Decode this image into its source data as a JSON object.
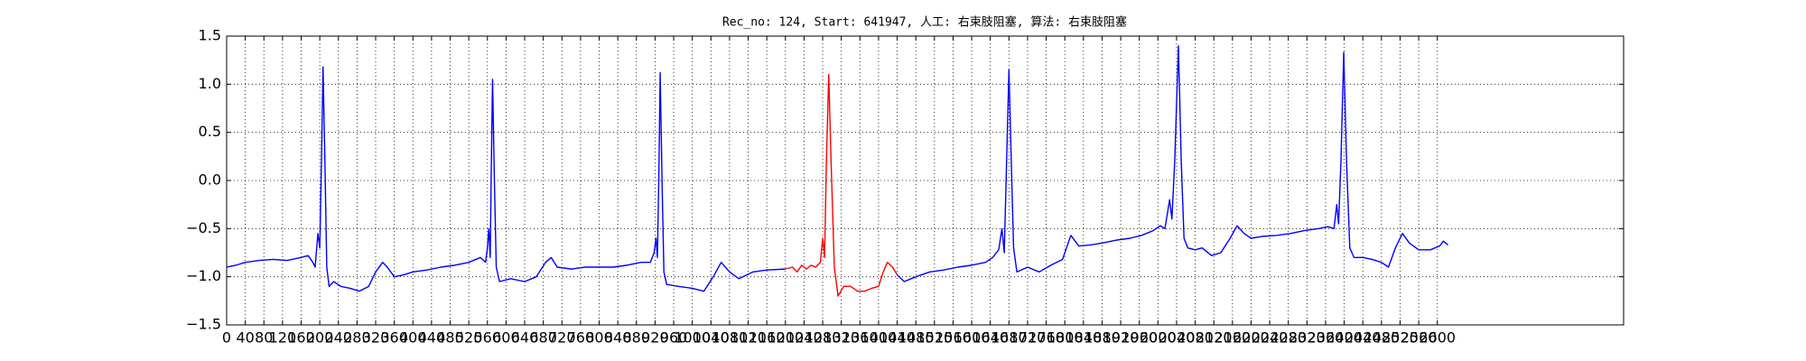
{
  "chart_data": {
    "type": "line",
    "title": "Rec_no: 124, Start: 641947, 人工: 右束肢阻塞, 算法: 右束肢阻塞",
    "xlim": [
      0,
      3000
    ],
    "ylim": [
      -1.5,
      1.5
    ],
    "xticks": [
      0,
      40,
      80,
      120,
      160,
      200,
      240,
      280,
      320,
      360,
      400,
      440,
      480,
      520,
      560,
      600,
      640,
      680,
      720,
      760,
      800,
      840,
      880,
      920,
      960,
      1000,
      1040,
      1080,
      1120,
      1160,
      1200,
      1240,
      1280,
      1320,
      1360,
      1400,
      1440,
      1480,
      1520,
      1560,
      1600,
      1640,
      1680,
      1720,
      1760,
      1800,
      1840,
      1880,
      1920,
      1960,
      2000,
      2040,
      2080,
      2120,
      2160,
      2200,
      2240,
      2280,
      2320,
      2360,
      2400,
      2440,
      2480,
      2520,
      2560,
      2600
    ],
    "yticks": [
      {
        "value": -1.5,
        "label": "−1.5"
      },
      {
        "value": -1,
        "label": "−1.0"
      },
      {
        "value": -0.5,
        "label": "−0.5"
      },
      {
        "value": 0,
        "label": "0.0"
      },
      0.5,
      {
        "value": 1,
        "label": "1.0"
      },
      1.5
    ],
    "grid": true,
    "series": [
      {
        "color": "#0000ff",
        "x": [
          0,
          20,
          40,
          70,
          100,
          130,
          160,
          175,
          185,
          190,
          196,
          200,
          204,
          207,
          211,
          215,
          220,
          230,
          245,
          265,
          285,
          305,
          320,
          335,
          345,
          360,
          380,
          400,
          430,
          460,
          490,
          520,
          545,
          556,
          560,
          563,
          566,
          568,
          571,
          575,
          579,
          586,
          610,
          640,
          665,
          685,
          697,
          710,
          740,
          770,
          800,
          830,
          860,
          890,
          910,
          918,
          922,
          925,
          928,
          931,
          935,
          939,
          945,
          970,
          1000,
          1025,
          1045,
          1062,
          1080,
          1100,
          1130,
          1160,
          1200
        ],
        "values": [
          -0.9,
          -0.88,
          -0.85,
          -0.83,
          -0.82,
          -0.83,
          -0.8,
          -0.78,
          -0.85,
          -0.9,
          -0.55,
          -0.7,
          0.3,
          1.18,
          0.2,
          -0.9,
          -1.1,
          -1.05,
          -1.1,
          -1.12,
          -1.15,
          -1.1,
          -0.95,
          -0.85,
          -0.9,
          -1.0,
          -0.98,
          -0.95,
          -0.93,
          -0.9,
          -0.88,
          -0.85,
          -0.8,
          -0.85,
          -0.7,
          -0.5,
          -0.8,
          0.0,
          1.05,
          0.0,
          -0.9,
          -1.05,
          -1.02,
          -1.05,
          -1.0,
          -0.85,
          -0.8,
          -0.9,
          -0.92,
          -0.9,
          -0.9,
          -0.9,
          -0.88,
          -0.85,
          -0.85,
          -0.75,
          -0.6,
          -0.8,
          0.0,
          1.12,
          0.0,
          -0.95,
          -1.08,
          -1.1,
          -1.12,
          -1.15,
          -1.0,
          -0.85,
          -0.95,
          -1.02,
          -0.95,
          -0.93,
          -0.92
        ]
      },
      {
        "color": "#ff0000",
        "x": [
          1200,
          1215,
          1225,
          1235,
          1245,
          1255,
          1265,
          1275,
          1280,
          1284,
          1288,
          1293,
          1298,
          1305,
          1313,
          1325,
          1340,
          1355,
          1370,
          1385,
          1400,
          1410,
          1419,
          1430,
          1440
        ],
        "values": [
          -0.92,
          -0.9,
          -0.95,
          -0.88,
          -0.92,
          -0.88,
          -0.9,
          -0.85,
          -0.6,
          -0.8,
          0.2,
          1.1,
          0.2,
          -0.9,
          -1.2,
          -1.1,
          -1.1,
          -1.15,
          -1.15,
          -1.12,
          -1.1,
          -0.95,
          -0.85,
          -0.9,
          -0.98
        ]
      },
      {
        "color": "#0000ff",
        "x": [
          1440,
          1455,
          1480,
          1510,
          1540,
          1570,
          1600,
          1630,
          1645,
          1658,
          1665,
          1670,
          1675,
          1680,
          1685,
          1690,
          1697,
          1720,
          1745,
          1770,
          1795,
          1813,
          1830,
          1855,
          1880,
          1910,
          1940,
          1965,
          1990,
          2005,
          2015,
          2025,
          2030,
          2036,
          2044,
          2050,
          2056,
          2064,
          2080,
          2095,
          2115,
          2135,
          2155,
          2170,
          2185,
          2200,
          2225,
          2255,
          2285,
          2315,
          2345,
          2365,
          2378,
          2384,
          2388,
          2393,
          2399,
          2405,
          2412,
          2421,
          2440,
          2460,
          2480,
          2495,
          2510,
          2525,
          2540,
          2560,
          2585,
          2605,
          2613,
          2623
        ],
        "values": [
          -0.98,
          -1.05,
          -1.0,
          -0.95,
          -0.93,
          -0.9,
          -0.88,
          -0.85,
          -0.8,
          -0.72,
          -0.5,
          -0.75,
          0.2,
          1.15,
          0.2,
          -0.7,
          -0.95,
          -0.9,
          -0.95,
          -0.88,
          -0.82,
          -0.57,
          -0.68,
          -0.67,
          -0.65,
          -0.62,
          -0.6,
          -0.57,
          -0.52,
          -0.47,
          -0.5,
          -0.2,
          -0.4,
          0.2,
          1.4,
          0.2,
          -0.6,
          -0.7,
          -0.72,
          -0.7,
          -0.78,
          -0.75,
          -0.6,
          -0.47,
          -0.55,
          -0.6,
          -0.58,
          -0.57,
          -0.55,
          -0.52,
          -0.5,
          -0.48,
          -0.5,
          -0.25,
          -0.45,
          0.2,
          1.33,
          0.2,
          -0.7,
          -0.8,
          -0.8,
          -0.82,
          -0.85,
          -0.9,
          -0.7,
          -0.55,
          -0.65,
          -0.72,
          -0.72,
          -0.68,
          -0.63,
          -0.67
        ]
      }
    ]
  }
}
